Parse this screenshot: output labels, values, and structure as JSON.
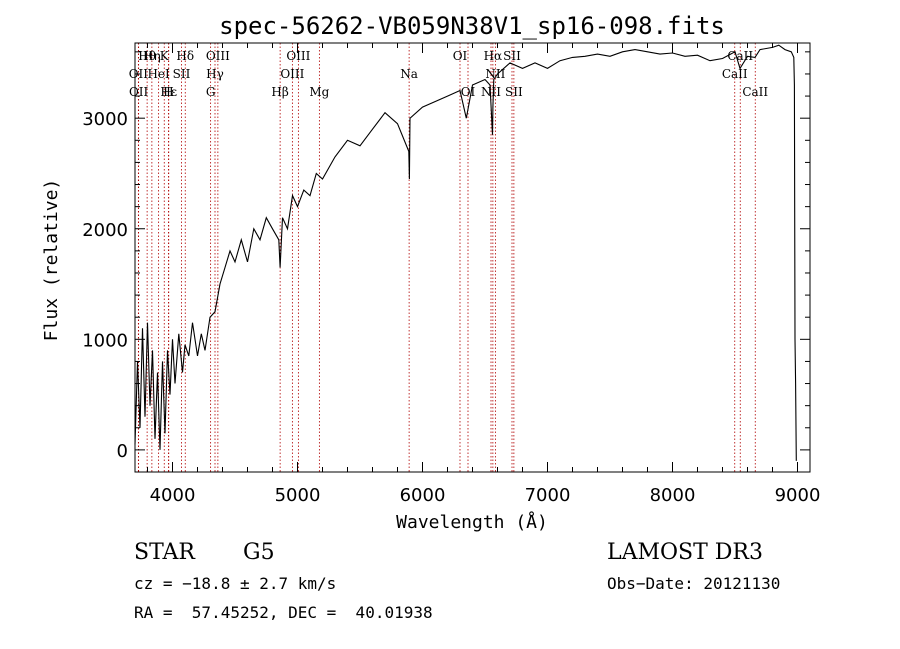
{
  "chart_data": {
    "type": "line",
    "title": "spec-56262-VB059N38V1_sp16-098.fits",
    "xlabel": "Wavelength (Å)",
    "ylabel": "Flux (relative)",
    "xlim": [
      3700,
      9100
    ],
    "ylim": [
      -200,
      3680
    ],
    "xticks": [
      4000,
      5000,
      6000,
      7000,
      8000,
      9000
    ],
    "yticks": [
      0,
      1000,
      2000,
      3000
    ],
    "series": [
      {
        "name": "flux",
        "x": [
          3700,
          3720,
          3740,
          3760,
          3780,
          3800,
          3820,
          3840,
          3860,
          3880,
          3900,
          3920,
          3940,
          3960,
          3980,
          4000,
          4020,
          4050,
          4080,
          4100,
          4130,
          4160,
          4200,
          4230,
          4260,
          4300,
          4340,
          4380,
          4420,
          4460,
          4500,
          4550,
          4600,
          4650,
          4700,
          4750,
          4800,
          4850,
          4861,
          4880,
          4920,
          4960,
          5000,
          5050,
          5100,
          5150,
          5200,
          5300,
          5400,
          5500,
          5600,
          5700,
          5800,
          5890,
          5895,
          5900,
          6000,
          6100,
          6200,
          6300,
          6350,
          6400,
          6500,
          6540,
          6560,
          6563,
          6570,
          6600,
          6700,
          6800,
          6900,
          7000,
          7100,
          7200,
          7300,
          7400,
          7500,
          7600,
          7700,
          7800,
          7900,
          8000,
          8100,
          8200,
          8300,
          8400,
          8500,
          8540,
          8600,
          8660,
          8700,
          8800,
          8850,
          8900,
          8950,
          8970,
          8975,
          8980,
          8985,
          8990
        ],
        "y": [
          50,
          800,
          200,
          1100,
          300,
          1150,
          400,
          900,
          100,
          700,
          0,
          800,
          150,
          900,
          500,
          1000,
          600,
          1050,
          700,
          950,
          850,
          1150,
          850,
          1050,
          900,
          1200,
          1250,
          1500,
          1650,
          1800,
          1700,
          1900,
          1700,
          2000,
          1900,
          2100,
          2000,
          1900,
          1650,
          2100,
          2000,
          2300,
          2200,
          2350,
          2300,
          2500,
          2450,
          2650,
          2800,
          2750,
          2900,
          3050,
          2950,
          2700,
          2450,
          3000,
          3100,
          3150,
          3200,
          3250,
          3000,
          3300,
          3350,
          3300,
          2850,
          3100,
          3350,
          3400,
          3500,
          3450,
          3500,
          3450,
          3520,
          3550,
          3560,
          3580,
          3560,
          3600,
          3620,
          3600,
          3580,
          3590,
          3560,
          3570,
          3520,
          3540,
          3600,
          3450,
          3560,
          3550,
          3620,
          3640,
          3660,
          3620,
          3600,
          3550,
          3300,
          1000,
          600,
          -100
        ]
      }
    ],
    "spectral_lines": [
      {
        "name": "Hθ",
        "x": 3797,
        "row": 0
      },
      {
        "name": "Hη",
        "x": 3835,
        "row": 0
      },
      {
        "name": "K",
        "x": 3934,
        "row": 0
      },
      {
        "name": "Hδ",
        "x": 4102,
        "row": 0
      },
      {
        "name": "OIII",
        "x": 4363,
        "row": 0
      },
      {
        "name": "OIII",
        "x": 5007,
        "row": 0
      },
      {
        "name": "OI",
        "x": 6300,
        "row": 0
      },
      {
        "name": "Hα",
        "x": 6563,
        "row": 0
      },
      {
        "name": "SII",
        "x": 6716,
        "row": 0
      },
      {
        "name": "CaII",
        "x": 8542,
        "row": 0
      },
      {
        "name": "OII",
        "x": 3727,
        "row": 1
      },
      {
        "name": "HeI",
        "x": 3889,
        "row": 1
      },
      {
        "name": "SII",
        "x": 4072,
        "row": 1
      },
      {
        "name": "Hγ",
        "x": 4340,
        "row": 1
      },
      {
        "name": "OIII",
        "x": 4959,
        "row": 1
      },
      {
        "name": "Na",
        "x": 5893,
        "row": 1
      },
      {
        "name": "NII",
        "x": 6583,
        "row": 1
      },
      {
        "name": "CaII",
        "x": 8498,
        "row": 1
      },
      {
        "name": "OII",
        "x": 3729,
        "row": 2
      },
      {
        "name": "Hε",
        "x": 3970,
        "row": 2
      },
      {
        "name": "H",
        "x": 3968,
        "row": 2
      },
      {
        "name": "G",
        "x": 4305,
        "row": 2
      },
      {
        "name": "Hβ",
        "x": 4861,
        "row": 2
      },
      {
        "name": "Mg",
        "x": 5175,
        "row": 2
      },
      {
        "name": "OI",
        "x": 6364,
        "row": 2
      },
      {
        "name": "NII",
        "x": 6548,
        "row": 2
      },
      {
        "name": "SII",
        "x": 6731,
        "row": 2
      },
      {
        "name": "CaII",
        "x": 8662,
        "row": 2
      }
    ]
  },
  "info": {
    "object_class": "STAR",
    "subclass": "G5",
    "survey": "LAMOST DR3",
    "cz": "cz = −18.8 ± 2.7 km/s",
    "obs_date": "Obs−Date: 20121130",
    "coords": "RA =  57.45252, DEC =  40.01938"
  },
  "colors": {
    "line_marker": "#b00000",
    "axis": "#000000",
    "spectrum": "#000000"
  }
}
